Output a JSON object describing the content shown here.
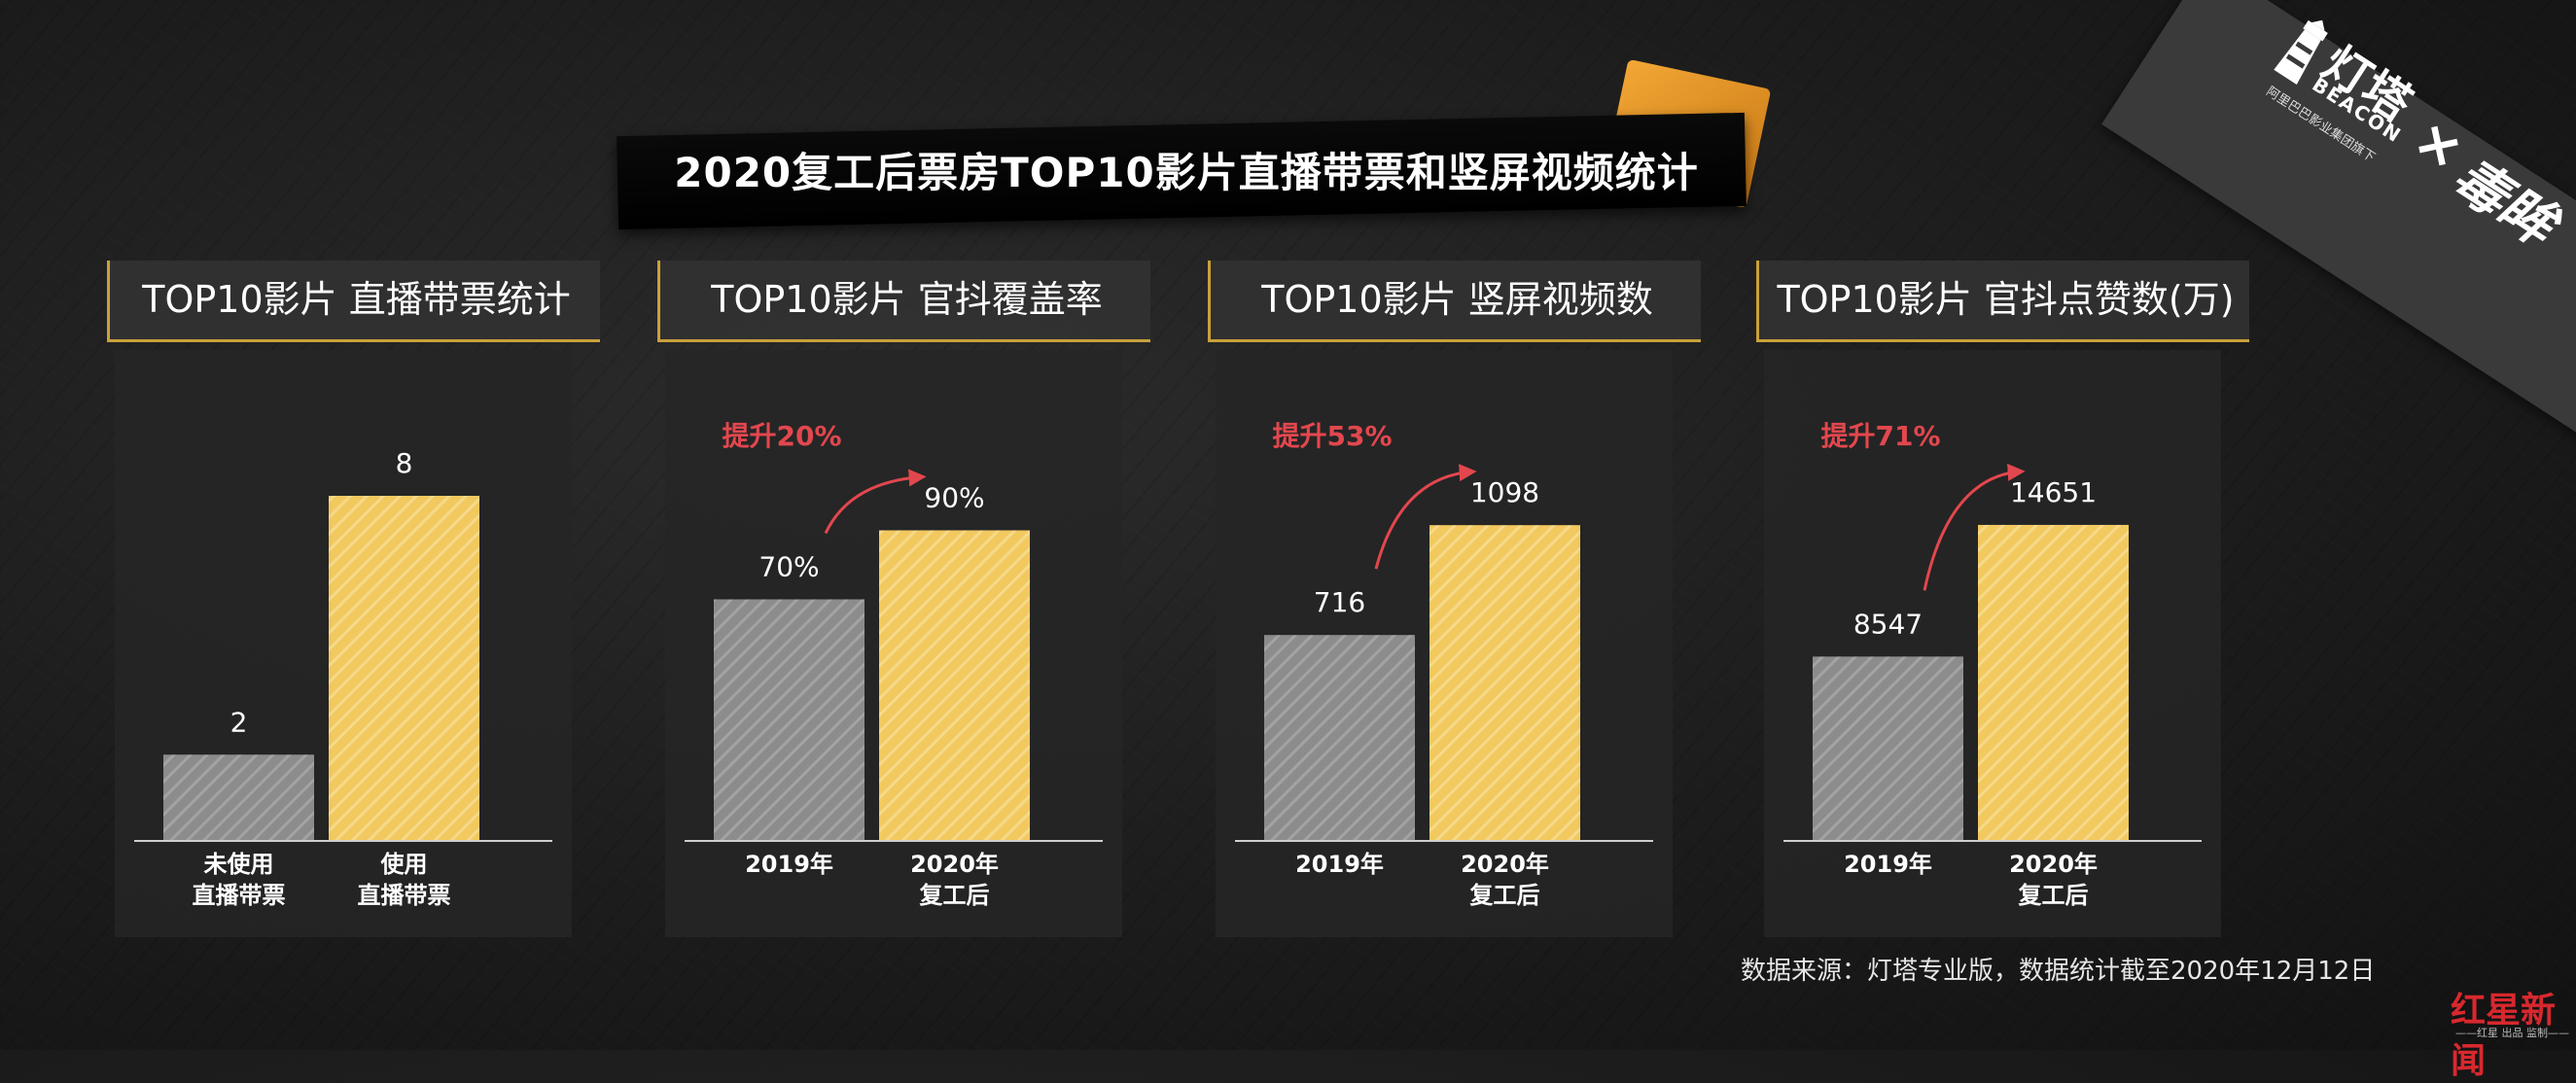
{
  "title": "2020复工后票房TOP10影片直播带票和竖屏视频统计",
  "logo": {
    "brand_cn": "灯塔",
    "brand_en": "BEACON",
    "brand_sub": "阿里巴巴影业集团旗下",
    "cross": "×",
    "partner": "毒眸",
    "beacon_icon": "lighthouse-icon"
  },
  "colors": {
    "bar_before": "#8c8c8c",
    "bar_after": "#f1c95f",
    "increase_text": "#e2474e",
    "header_border": "#c9a13c"
  },
  "chart_data": [
    {
      "type": "bar",
      "title": "TOP10影片 直播带票统计",
      "categories": [
        "未使用\n直播带票",
        "使用\n直播带票"
      ],
      "values": [
        2,
        8
      ],
      "value_labels": [
        "2",
        "8"
      ],
      "ylim": [
        0,
        8
      ],
      "increase": ""
    },
    {
      "type": "bar",
      "title": "TOP10影片 官抖覆盖率",
      "categories": [
        "2019年",
        "2020年\n复工后"
      ],
      "values": [
        70,
        90
      ],
      "value_labels": [
        "70%",
        "90%"
      ],
      "ylim": [
        0,
        100
      ],
      "increase": "提升20%"
    },
    {
      "type": "bar",
      "title": "TOP10影片 竖屏视频数",
      "categories": [
        "2019年",
        "2020年\n复工后"
      ],
      "values": [
        716,
        1098
      ],
      "value_labels": [
        "716",
        "1098"
      ],
      "ylim": [
        0,
        1200
      ],
      "increase": "提升53%"
    },
    {
      "type": "bar",
      "title": "TOP10影片 官抖点赞数(万)",
      "categories": [
        "2019年",
        "2020年\n复工后"
      ],
      "values": [
        8547,
        14651
      ],
      "value_labels": [
        "8547",
        "14651"
      ],
      "ylim": [
        0,
        16000
      ],
      "increase": "提升71%"
    }
  ],
  "footnote": "数据来源：灯塔专业版，数据统计截至2020年12月12日",
  "watermark": {
    "text": "红星新闻",
    "sub": "——红星 出品 监制——"
  }
}
